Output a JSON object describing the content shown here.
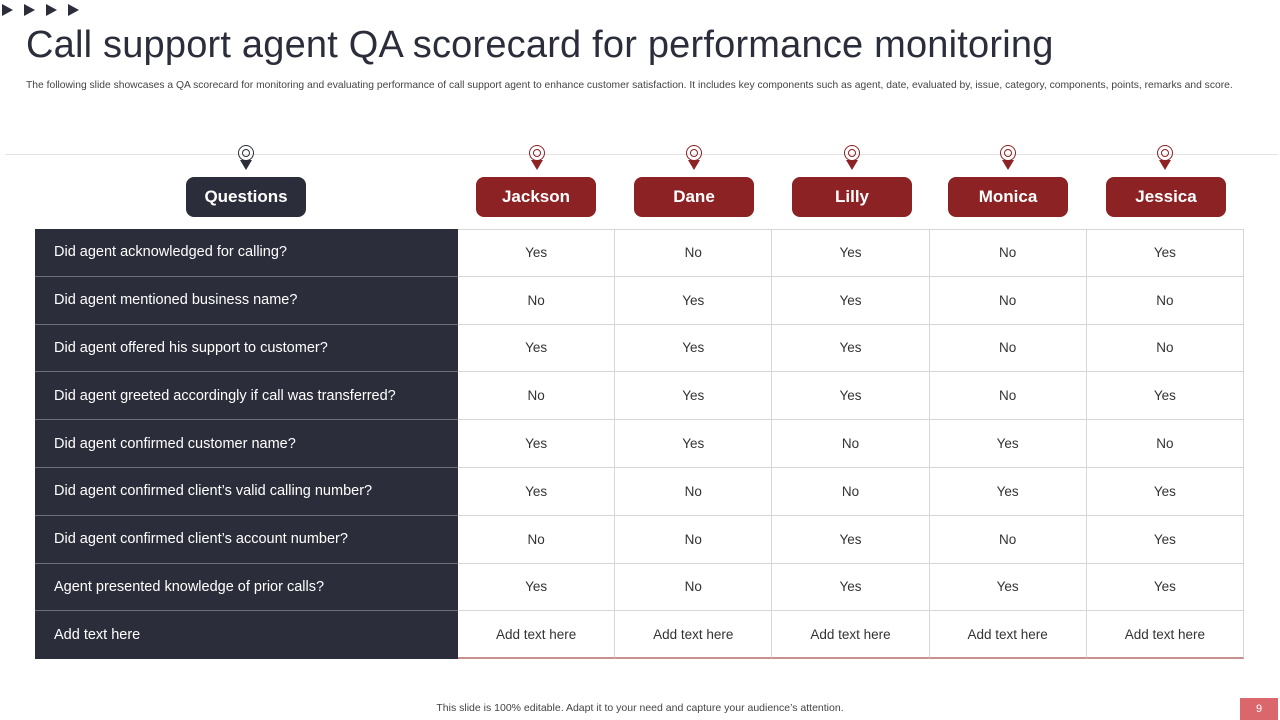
{
  "slide": {
    "title": "Call support agent QA scorecard for performance monitoring",
    "subtitle": "The following slide showcases a QA scorecard for monitoring and evaluating performance of call support agent to enhance customer satisfaction. It includes key components such as agent, date, evaluated by, issue, category, components, points, remarks and score.",
    "footer": "This slide is 100% editable.  Adapt it to your need and capture your audience’s attention.",
    "page_number": "9"
  },
  "colors": {
    "dark": "#2b2e3a",
    "accent": "#8c2224"
  },
  "icons": {
    "arrows": "play-arrow-icon",
    "pin": "map-pin-icon"
  },
  "table": {
    "questions_header": "Questions",
    "agents": [
      "Jackson",
      "Dane",
      "Lilly",
      "Monica",
      "Jessica"
    ],
    "rows": [
      {
        "question": "Did agent acknowledged  for calling?",
        "answers": [
          "Yes",
          "No",
          "Yes",
          "No",
          "Yes"
        ]
      },
      {
        "question": "Did agent mentioned business name?",
        "answers": [
          "No",
          "Yes",
          "Yes",
          "No",
          "No"
        ]
      },
      {
        "question": "Did agent offered his support to customer?",
        "answers": [
          "Yes",
          "Yes",
          "Yes",
          "No",
          "No"
        ]
      },
      {
        "question": "Did agent greeted accordingly if call was transferred?",
        "answers": [
          "No",
          "Yes",
          "Yes",
          "No",
          "Yes"
        ]
      },
      {
        "question": "Did agent confirmed customer name?",
        "answers": [
          "Yes",
          "Yes",
          "No",
          "Yes",
          "No"
        ]
      },
      {
        "question": "Did agent confirmed client’s valid calling number?",
        "answers": [
          "Yes",
          "No",
          "No",
          "Yes",
          "Yes"
        ]
      },
      {
        "question": "Did agent confirmed client’s account number?",
        "answers": [
          "No",
          "No",
          "Yes",
          "No",
          "Yes"
        ]
      },
      {
        "question": "Agent presented knowledge of prior calls?",
        "answers": [
          "Yes",
          "No",
          "Yes",
          "Yes",
          "Yes"
        ]
      },
      {
        "question": "Add text here",
        "answers": [
          "Add text here",
          "Add text here",
          "Add text here",
          "Add text here",
          "Add text here"
        ]
      }
    ]
  }
}
